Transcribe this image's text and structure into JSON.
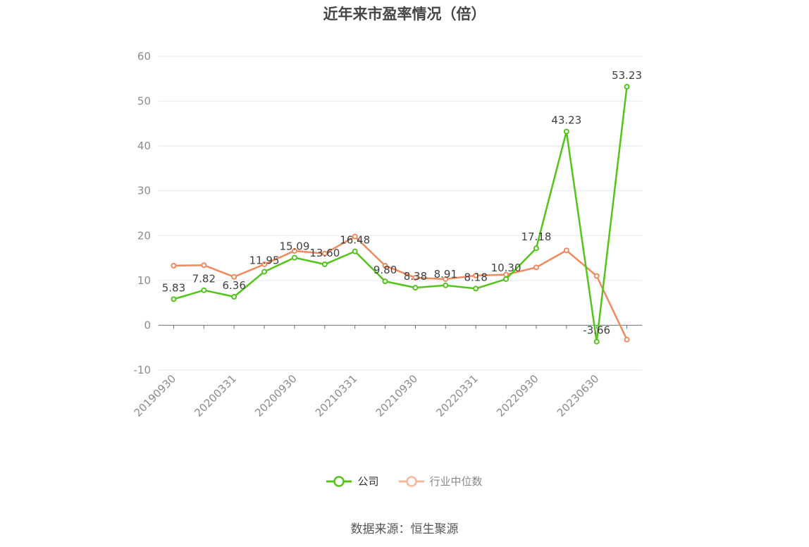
{
  "chart_data": {
    "type": "line",
    "title": "近年来市盈率情况（倍）",
    "source": "数据来源：恒生聚源",
    "x_tick_labels": [
      "20190930",
      "20200331",
      "20200930",
      "20210331",
      "20210930",
      "20220331",
      "20220930",
      "20230630"
    ],
    "ylim": [
      -10,
      60
    ],
    "yticks": [
      "60",
      "50",
      "40",
      "30",
      "20",
      "10",
      "0",
      "-10"
    ],
    "ytick_values": [
      60,
      50,
      40,
      30,
      20,
      10,
      0,
      -10
    ],
    "grid": true,
    "legend_position": "bottom",
    "series": [
      {
        "name": "公司",
        "color": "#52c41a",
        "values": [
          5.83,
          7.82,
          6.36,
          11.95,
          15.09,
          13.6,
          16.48,
          9.8,
          8.38,
          8.91,
          8.18,
          10.3,
          17.18,
          43.23,
          -3.66,
          53.23
        ],
        "labels": [
          "5.83",
          "7.82",
          "6.36",
          "11.95",
          "15.09",
          "13.60",
          "16.48",
          "9.80",
          "8.38",
          "8.91",
          "8.18",
          "10.30",
          "17.18",
          "43.23",
          "-3.66",
          "53.23"
        ]
      },
      {
        "name": "行业中位数",
        "color": "#f08a5d",
        "values": [
          13.3,
          13.4,
          10.8,
          13.6,
          16.6,
          16.0,
          19.8,
          13.3,
          10.6,
          10.3,
          11.1,
          11.3,
          12.9,
          16.7,
          11.0,
          -3.2
        ]
      }
    ]
  }
}
